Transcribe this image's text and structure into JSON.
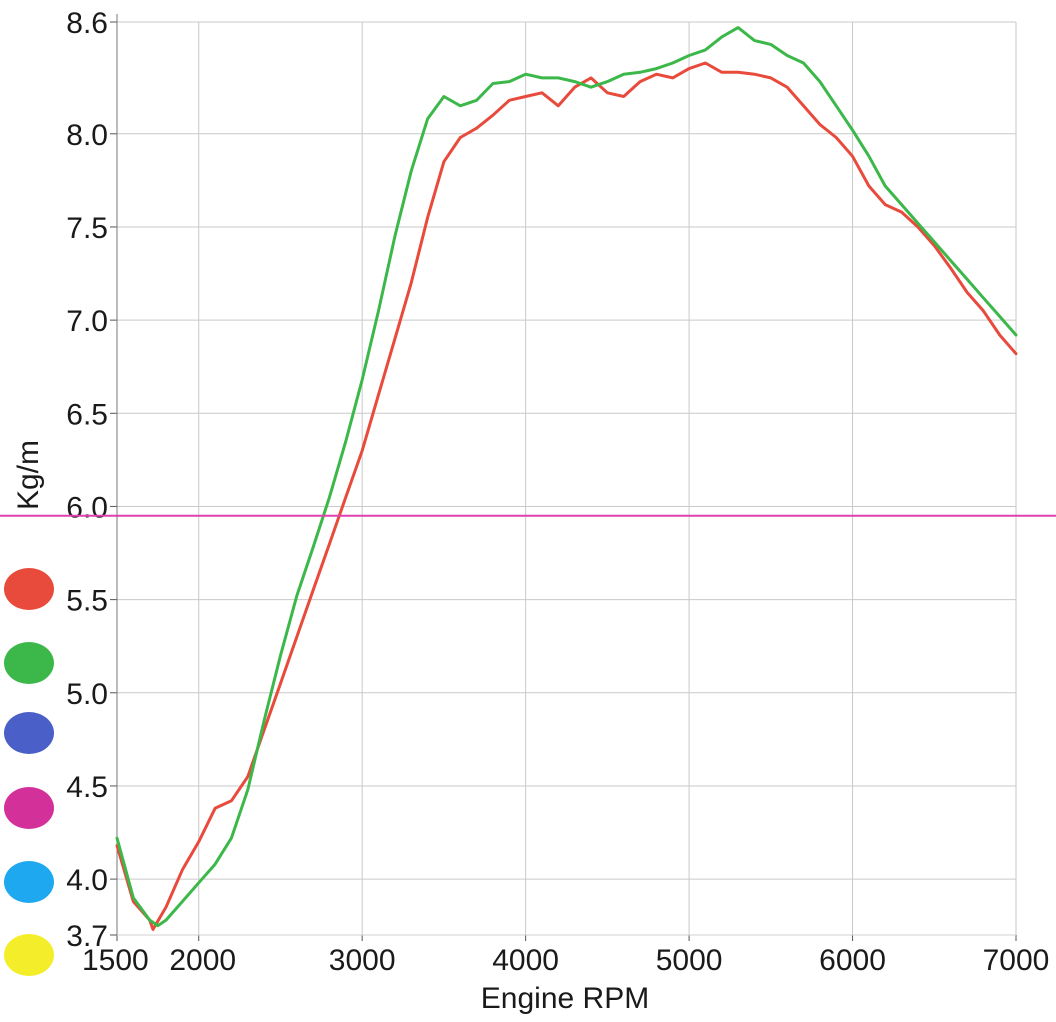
{
  "chart_data": {
    "type": "line",
    "title": "",
    "xlabel": "Engine RPM",
    "ylabel": "Kg/m",
    "xlim": [
      1500,
      7000
    ],
    "ylim": [
      3.7,
      8.6
    ],
    "x_ticks": [
      {
        "value": 1500,
        "label": "1500"
      },
      {
        "value": 2000,
        "label": "2000"
      },
      {
        "value": 3000,
        "label": "3000"
      },
      {
        "value": 4000,
        "label": "4000"
      },
      {
        "value": 5000,
        "label": "5000"
      },
      {
        "value": 6000,
        "label": "6000"
      },
      {
        "value": 7000,
        "label": "7000"
      }
    ],
    "y_ticks": [
      {
        "value": 3.7,
        "label": "3.7"
      },
      {
        "value": 4.0,
        "label": "4.0"
      },
      {
        "value": 4.5,
        "label": "4.5"
      },
      {
        "value": 5.0,
        "label": "5.0"
      },
      {
        "value": 5.5,
        "label": "5.5"
      },
      {
        "value": 6.0,
        "label": "6.0"
      },
      {
        "value": 6.5,
        "label": "6.5"
      },
      {
        "value": 7.0,
        "label": "7.0"
      },
      {
        "value": 7.5,
        "label": "7.5"
      },
      {
        "value": 8.0,
        "label": "8.0"
      },
      {
        "value": 8.6,
        "label": "8.6"
      }
    ],
    "grid": true,
    "reference_line": {
      "y": 5.95,
      "color": "#e040b0"
    },
    "legend_position": "left",
    "legend_swatches": [
      "#e84a3c",
      "#3cb84a",
      "#4a5fc8",
      "#d4309a",
      "#1ea8f0",
      "#f4ee2a"
    ],
    "series": [
      {
        "color": "#e84a3c",
        "x": [
          1500,
          1600,
          1700,
          1720,
          1800,
          1900,
          2000,
          2100,
          2200,
          2300,
          2400,
          2500,
          2600,
          2700,
          2800,
          2900,
          3000,
          3100,
          3200,
          3300,
          3400,
          3500,
          3600,
          3700,
          3800,
          3900,
          4000,
          4100,
          4200,
          4300,
          4400,
          4500,
          4600,
          4700,
          4800,
          4900,
          5000,
          5100,
          5200,
          5300,
          5400,
          5500,
          5600,
          5700,
          5800,
          5900,
          6000,
          6100,
          6200,
          6300,
          6400,
          6500,
          6600,
          6700,
          6800,
          6900,
          7000
        ],
        "values": [
          4.18,
          3.88,
          3.78,
          3.73,
          3.85,
          4.05,
          4.2,
          4.38,
          4.42,
          4.55,
          4.8,
          5.05,
          5.3,
          5.55,
          5.8,
          6.05,
          6.3,
          6.6,
          6.9,
          7.2,
          7.55,
          7.85,
          7.98,
          8.03,
          8.1,
          8.18,
          8.2,
          8.22,
          8.15,
          8.25,
          8.3,
          8.22,
          8.2,
          8.28,
          8.32,
          8.3,
          8.35,
          8.38,
          8.33,
          8.33,
          8.32,
          8.3,
          8.25,
          8.15,
          8.05,
          7.98,
          7.88,
          7.72,
          7.62,
          7.58,
          7.5,
          7.4,
          7.28,
          7.15,
          7.05,
          6.92,
          6.82
        ]
      },
      {
        "color": "#3cb84a",
        "x": [
          1500,
          1600,
          1700,
          1750,
          1800,
          1900,
          2000,
          2100,
          2200,
          2300,
          2400,
          2500,
          2600,
          2700,
          2800,
          2900,
          3000,
          3100,
          3200,
          3300,
          3400,
          3500,
          3600,
          3700,
          3800,
          3900,
          4000,
          4100,
          4200,
          4300,
          4400,
          4500,
          4600,
          4700,
          4800,
          4900,
          5000,
          5100,
          5200,
          5300,
          5400,
          5500,
          5600,
          5700,
          5800,
          5900,
          6000,
          6100,
          6200,
          6300,
          6400,
          6500,
          6600,
          6700,
          6800,
          6900,
          7000
        ],
        "values": [
          4.22,
          3.9,
          3.78,
          3.75,
          3.78,
          3.88,
          3.98,
          4.08,
          4.22,
          4.48,
          4.85,
          5.2,
          5.52,
          5.78,
          6.05,
          6.35,
          6.68,
          7.05,
          7.45,
          7.8,
          8.08,
          8.2,
          8.15,
          8.18,
          8.27,
          8.28,
          8.32,
          8.3,
          8.3,
          8.28,
          8.25,
          8.28,
          8.32,
          8.33,
          8.35,
          8.38,
          8.42,
          8.45,
          8.52,
          8.57,
          8.5,
          8.48,
          8.42,
          8.38,
          8.28,
          8.15,
          8.02,
          7.88,
          7.72,
          7.62,
          7.52,
          7.42,
          7.32,
          7.22,
          7.12,
          7.02,
          6.92
        ]
      }
    ]
  }
}
